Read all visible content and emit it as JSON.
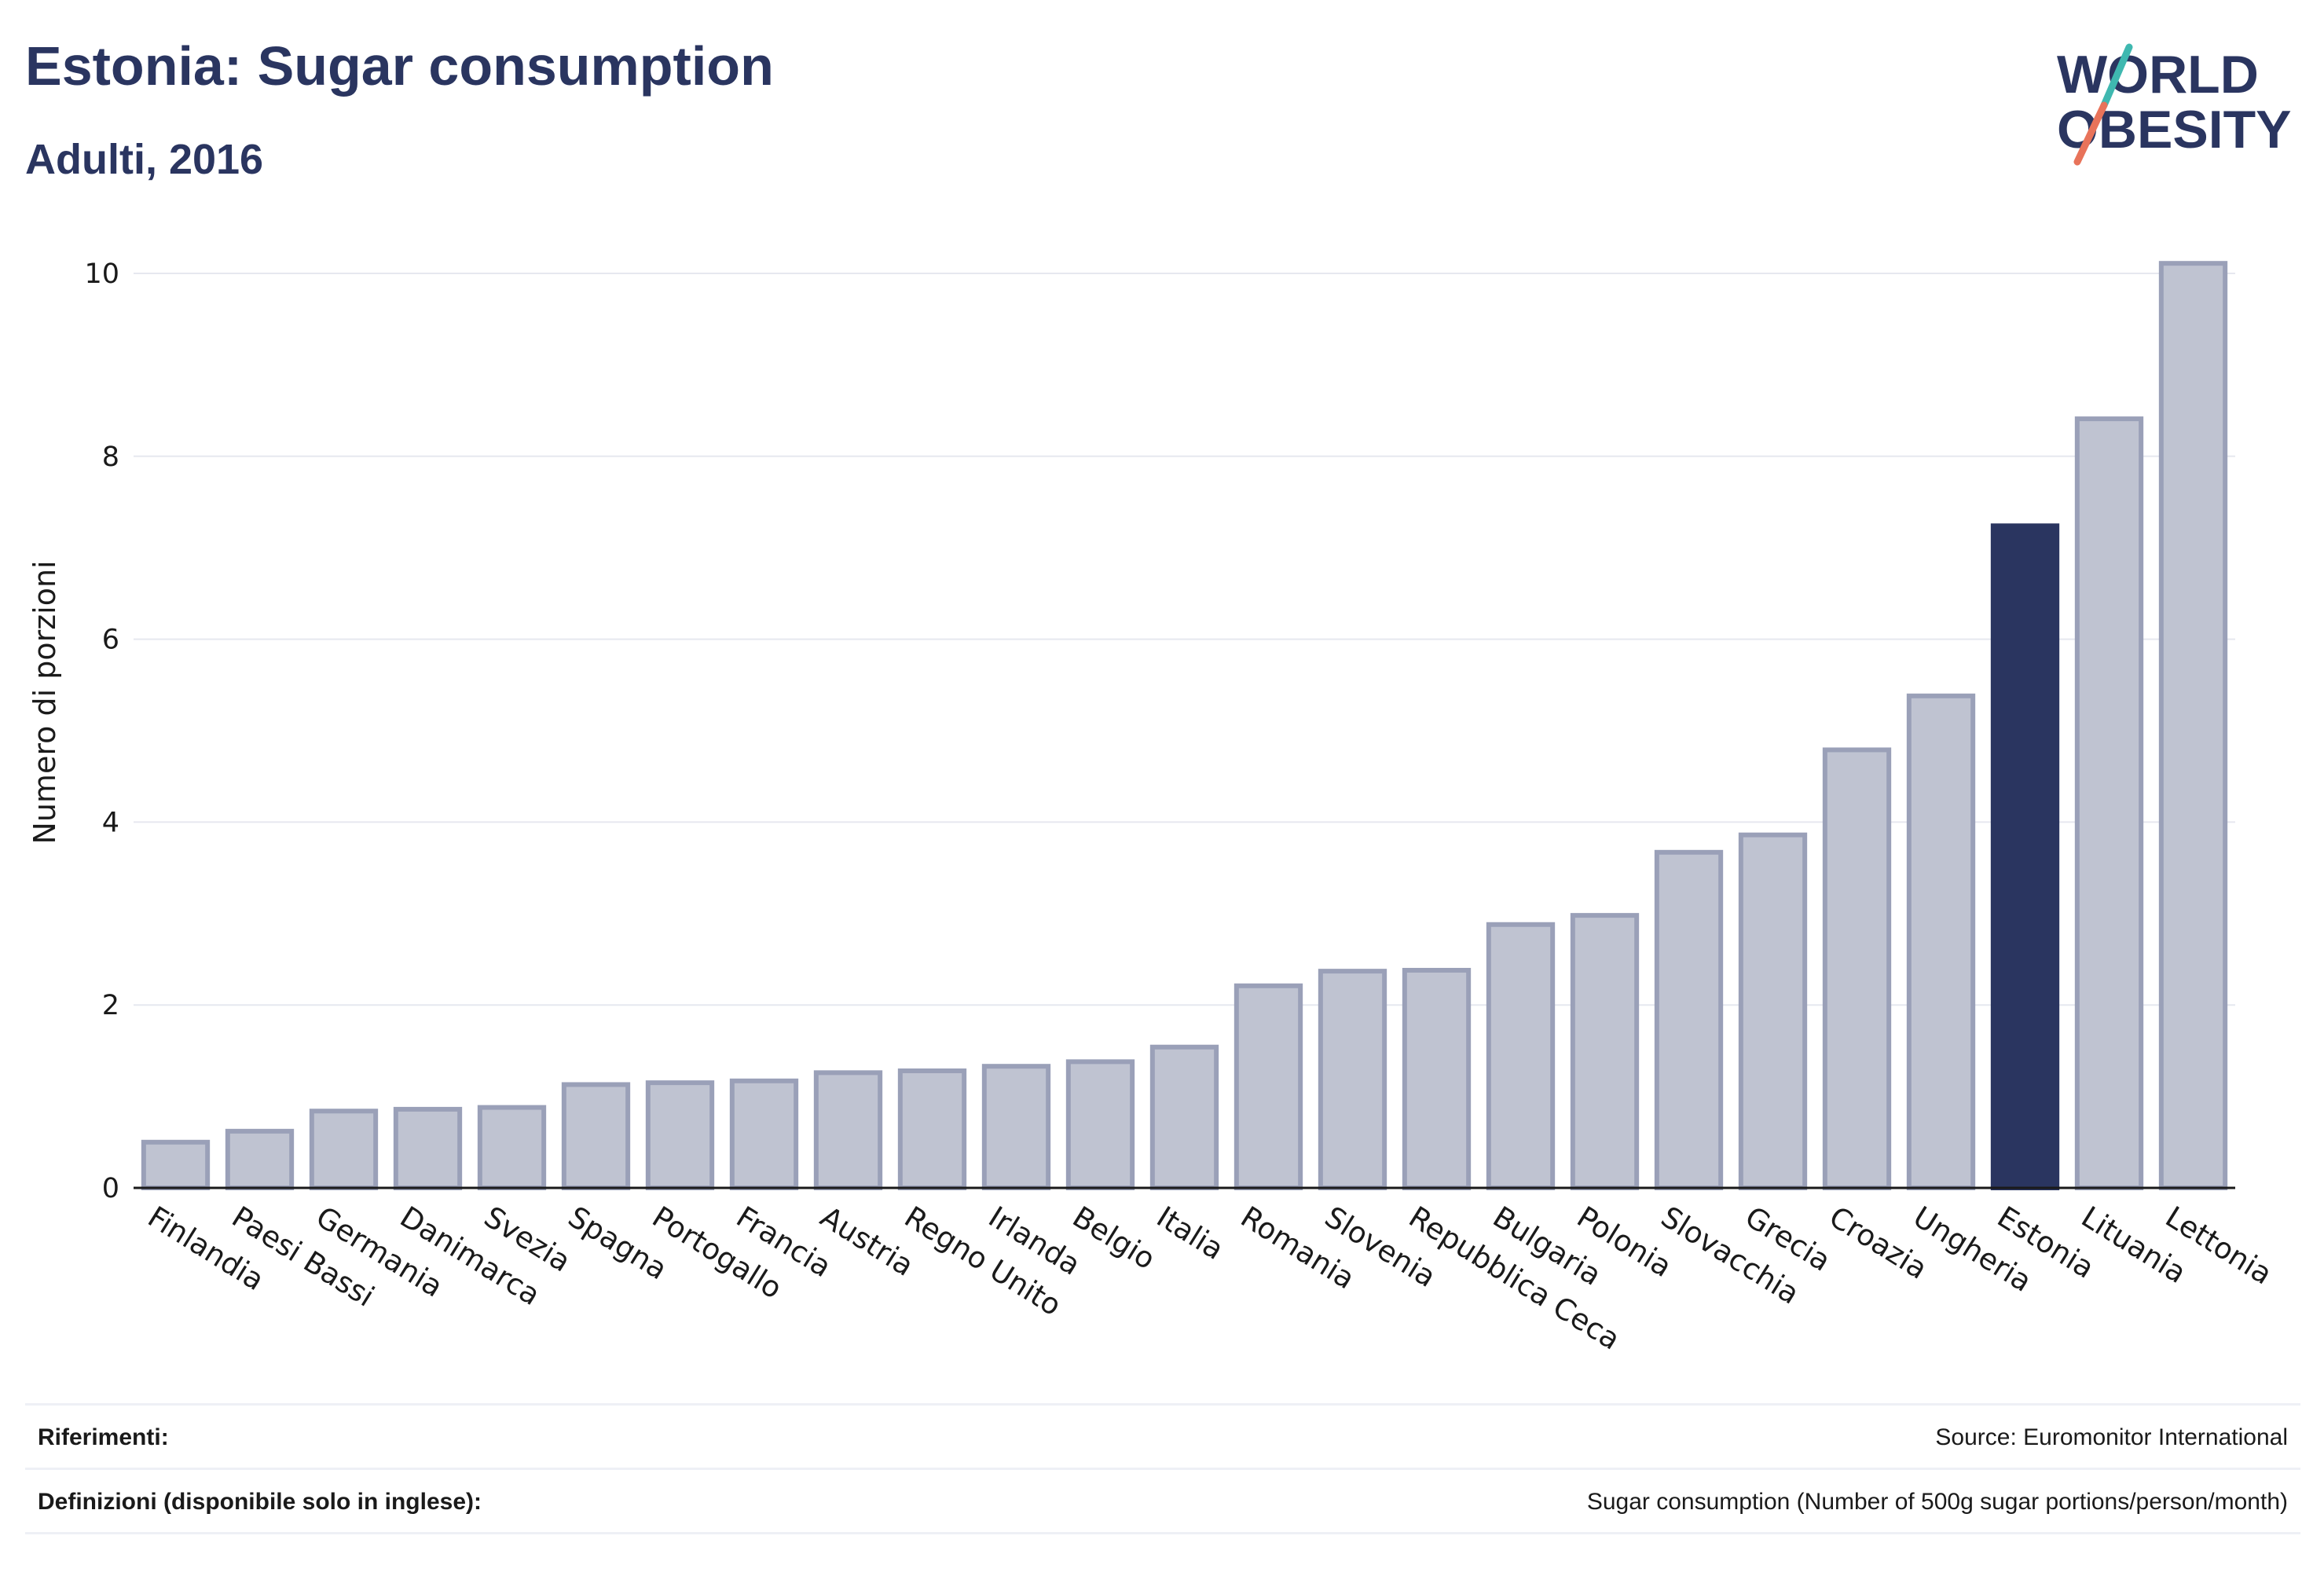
{
  "header": {
    "title": "Estonia: Sugar consumption",
    "subtitle": "Adulti, 2016"
  },
  "logo": {
    "line1": "WORLD",
    "line2": "OBESITY",
    "colors": {
      "text": "#2a3560",
      "slash_top": "#3fb8b0",
      "slash_bottom": "#e8735a"
    }
  },
  "colors": {
    "bar": "#bfc3d1",
    "bar_border": "#9aa0b8",
    "highlight": "#2a3560",
    "grid": "#e6e8ef",
    "axis": "#1a1a1a"
  },
  "chart_data": {
    "type": "bar",
    "title": "Estonia: Sugar consumption",
    "subtitle": "Adulti, 2016",
    "xlabel": "",
    "ylabel": "Numero di porzioni",
    "ylim": [
      0,
      10.4
    ],
    "yticks": [
      0,
      2,
      4,
      6,
      8,
      10
    ],
    "grid": true,
    "highlight": "Estonia",
    "categories": [
      "Finlandia",
      "Paesi Bassi",
      "Germania",
      "Danimarca",
      "Svezia",
      "Spagna",
      "Portogallo",
      "Francia",
      "Austria",
      "Regno Unito",
      "Irlanda",
      "Belgio",
      "Italia",
      "Romania",
      "Slovenia",
      "Repubblica Ceca",
      "Bulgaria",
      "Polonia",
      "Slovacchia",
      "Grecia",
      "Croazia",
      "Ungheria",
      "Estonia",
      "Lituania",
      "Lettonia"
    ],
    "values": [
      0.5,
      0.62,
      0.84,
      0.86,
      0.88,
      1.13,
      1.15,
      1.17,
      1.26,
      1.28,
      1.33,
      1.38,
      1.54,
      2.21,
      2.37,
      2.38,
      2.88,
      2.98,
      3.67,
      3.86,
      4.79,
      5.38,
      7.24,
      8.41,
      10.11
    ]
  },
  "footer": {
    "references_label": "Riferimenti:",
    "references_value": "Source: Euromonitor International",
    "definitions_label": "Definizioni (disponibile solo in inglese):",
    "definitions_value": "Sugar consumption (Number of 500g sugar portions/person/month)"
  }
}
